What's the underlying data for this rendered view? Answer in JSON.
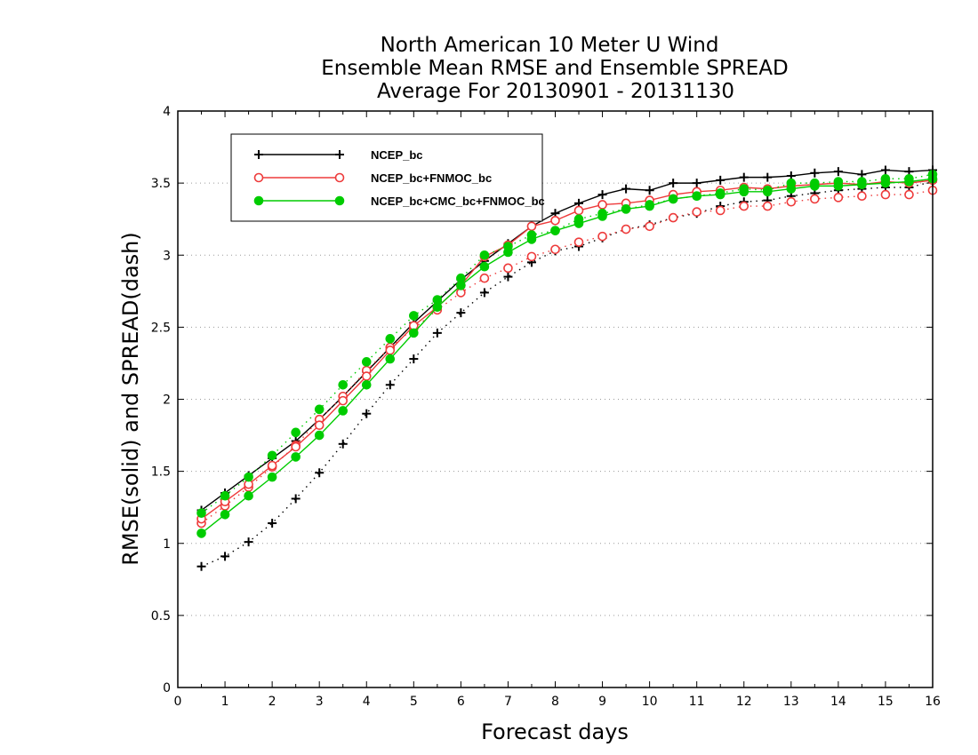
{
  "chart_data": {
    "type": "line",
    "title_lines": [
      "North American 10 Meter U Wind",
      "Ensemble Mean RMSE and Ensemble SPREAD",
      "Average For 20130901 - 20131130"
    ],
    "xlabel": "Forecast days",
    "ylabel": "RMSE(solid) and SPREAD(dash)",
    "xlim": [
      0,
      16
    ],
    "ylim": [
      0,
      4
    ],
    "x_ticks": [
      "0",
      "1",
      "2",
      "3",
      "4",
      "5",
      "6",
      "7",
      "8",
      "9",
      "10",
      "11",
      "12",
      "13",
      "14",
      "15",
      "16"
    ],
    "y_ticks": [
      "0",
      "0.5",
      "1",
      "1.5",
      "2",
      "2.5",
      "3",
      "3.5",
      "4"
    ],
    "grid": "horizontal dotted",
    "legend_position": "top-left",
    "x": [
      0.5,
      1,
      1.5,
      2,
      2.5,
      3,
      3.5,
      4,
      4.5,
      5,
      5.5,
      6,
      6.5,
      7,
      7.5,
      8,
      8.5,
      9,
      9.5,
      10,
      10.5,
      11,
      11.5,
      12,
      12.5,
      13,
      13.5,
      14,
      14.5,
      15,
      15.5,
      16
    ],
    "series": [
      {
        "name": "NCEP_bc",
        "color": "#000000",
        "marker": "plus",
        "rmse": [
          1.23,
          1.35,
          1.47,
          1.59,
          1.71,
          1.86,
          2.02,
          2.19,
          2.36,
          2.53,
          2.68,
          2.83,
          2.96,
          3.08,
          3.2,
          3.29,
          3.36,
          3.42,
          3.46,
          3.45,
          3.5,
          3.5,
          3.52,
          3.54,
          3.54,
          3.55,
          3.57,
          3.58,
          3.56,
          3.59,
          3.58,
          3.59
        ],
        "spread": [
          0.84,
          0.91,
          1.01,
          1.14,
          1.31,
          1.49,
          1.69,
          1.9,
          2.1,
          2.28,
          2.46,
          2.6,
          2.74,
          2.85,
          2.95,
          3.03,
          3.06,
          3.12,
          3.18,
          3.21,
          3.26,
          3.29,
          3.34,
          3.37,
          3.38,
          3.41,
          3.43,
          3.45,
          3.46,
          3.47,
          3.47,
          3.51
        ]
      },
      {
        "name": "NCEP_bc+FNMOC_bc",
        "color": "#ee3b3b",
        "marker": "open-circle",
        "rmse": [
          1.17,
          1.29,
          1.41,
          1.54,
          1.67,
          1.82,
          1.99,
          2.16,
          2.34,
          2.51,
          2.64,
          2.79,
          2.99,
          3.07,
          3.2,
          3.24,
          3.31,
          3.35,
          3.36,
          3.38,
          3.42,
          3.44,
          3.45,
          3.47,
          3.46,
          3.48,
          3.49,
          3.5,
          3.49,
          3.51,
          3.5,
          3.52
        ],
        "spread": [
          1.14,
          1.26,
          1.39,
          1.53,
          1.68,
          1.86,
          2.02,
          2.2,
          2.36,
          2.49,
          2.62,
          2.74,
          2.84,
          2.91,
          2.99,
          3.04,
          3.09,
          3.13,
          3.18,
          3.2,
          3.26,
          3.3,
          3.31,
          3.34,
          3.34,
          3.37,
          3.39,
          3.4,
          3.41,
          3.42,
          3.42,
          3.45
        ]
      },
      {
        "name": "NCEP_bc+CMC_bc+FNMOC_bc",
        "color": "#00cc00",
        "marker": "filled-circle",
        "rmse": [
          1.07,
          1.2,
          1.33,
          1.46,
          1.6,
          1.75,
          1.92,
          2.1,
          2.28,
          2.46,
          2.64,
          2.79,
          2.92,
          3.02,
          3.11,
          3.17,
          3.22,
          3.27,
          3.32,
          3.34,
          3.39,
          3.41,
          3.42,
          3.44,
          3.44,
          3.46,
          3.48,
          3.48,
          3.49,
          3.5,
          3.51,
          3.53
        ],
        "spread": [
          1.21,
          1.33,
          1.46,
          1.61,
          1.77,
          1.93,
          2.1,
          2.26,
          2.42,
          2.58,
          2.69,
          2.84,
          3.0,
          3.06,
          3.14,
          3.17,
          3.25,
          3.29,
          3.32,
          3.35,
          3.39,
          3.41,
          3.43,
          3.46,
          3.45,
          3.5,
          3.5,
          3.51,
          3.51,
          3.53,
          3.53,
          3.56
        ]
      }
    ]
  }
}
